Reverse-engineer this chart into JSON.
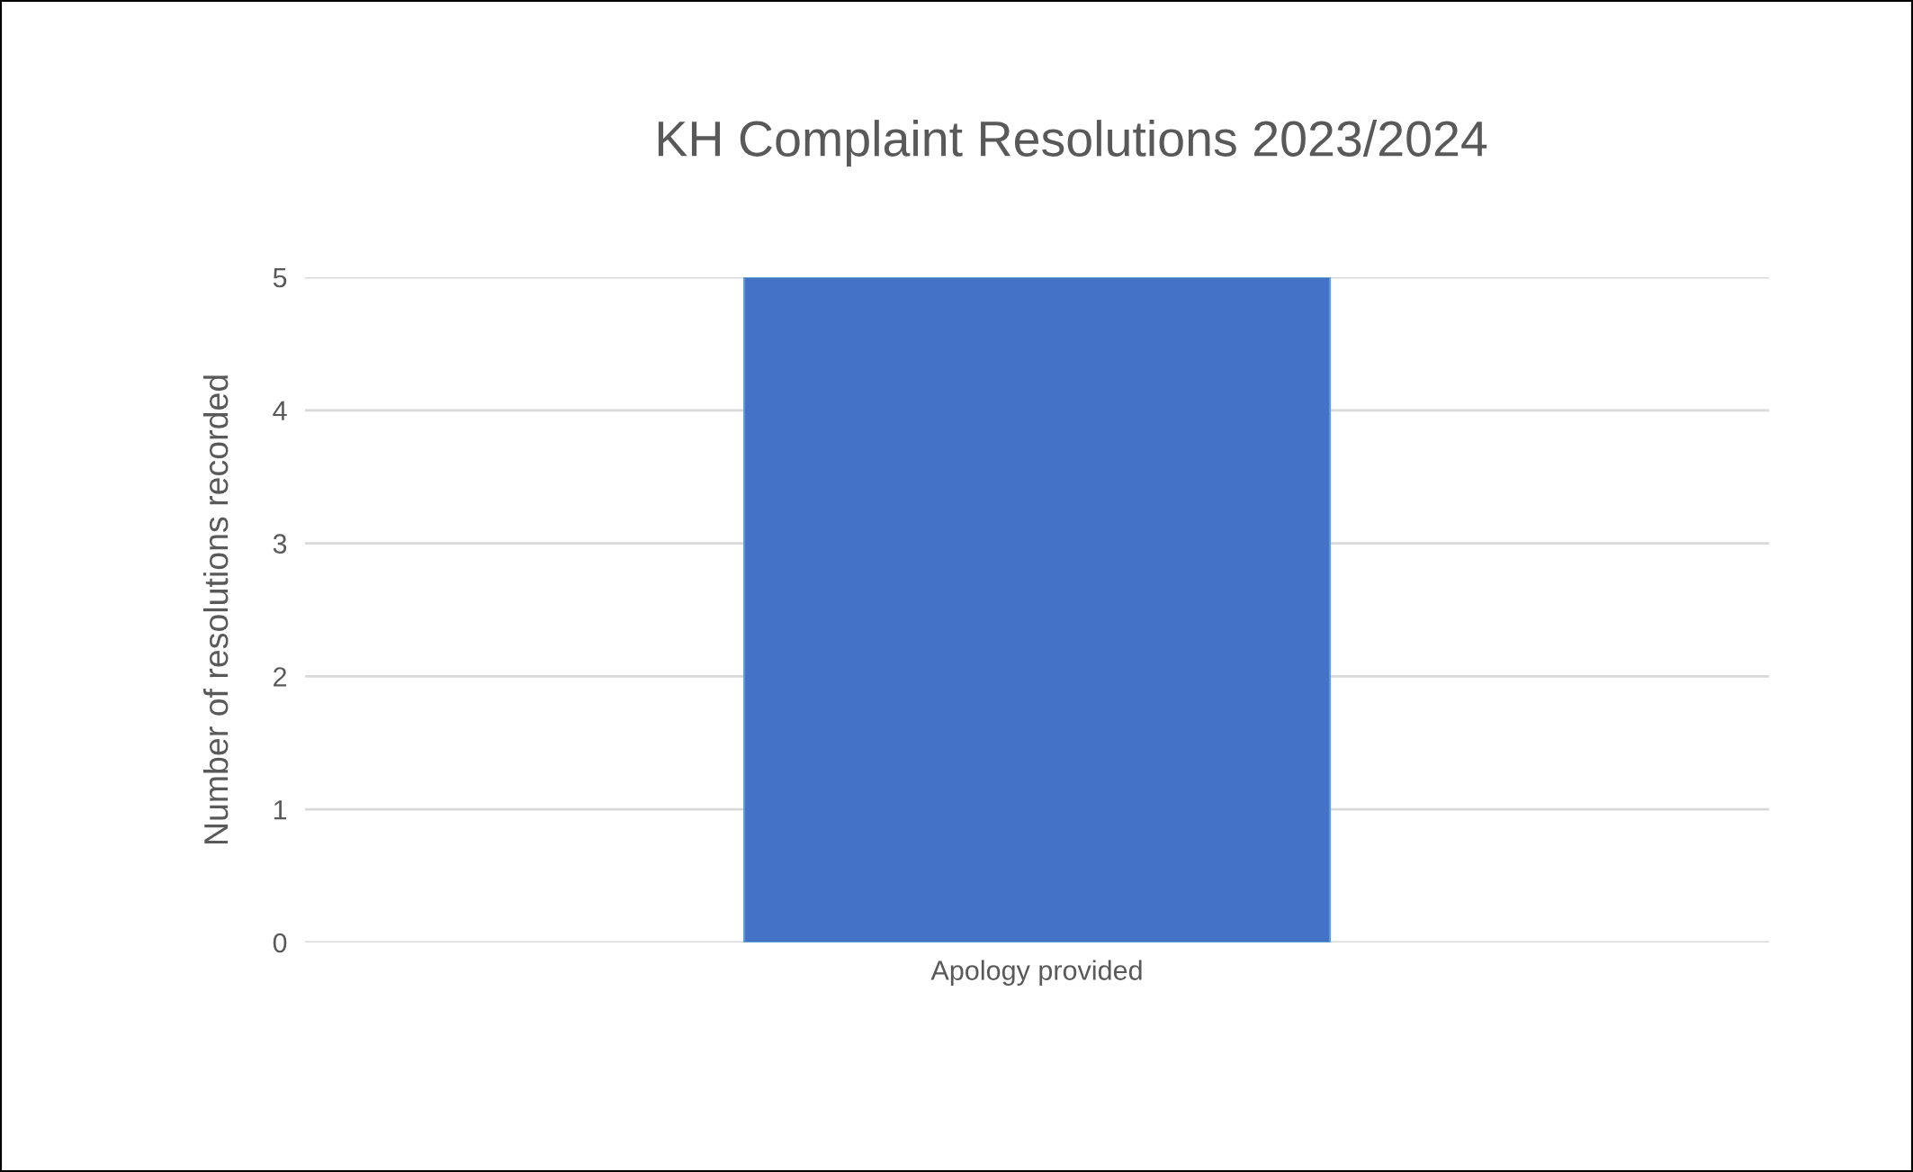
{
  "chart_data": {
    "type": "bar",
    "title": "KH Complaint Resolutions 2023/2024",
    "ylabel": "Number of resolutions recorded",
    "categories": [
      "Apology provided"
    ],
    "values": [
      5
    ],
    "color": "#4472c4",
    "ylim": [
      0,
      5
    ],
    "yticks": [
      0,
      1,
      2,
      3,
      4,
      5
    ],
    "grid": "y",
    "legend": false
  }
}
